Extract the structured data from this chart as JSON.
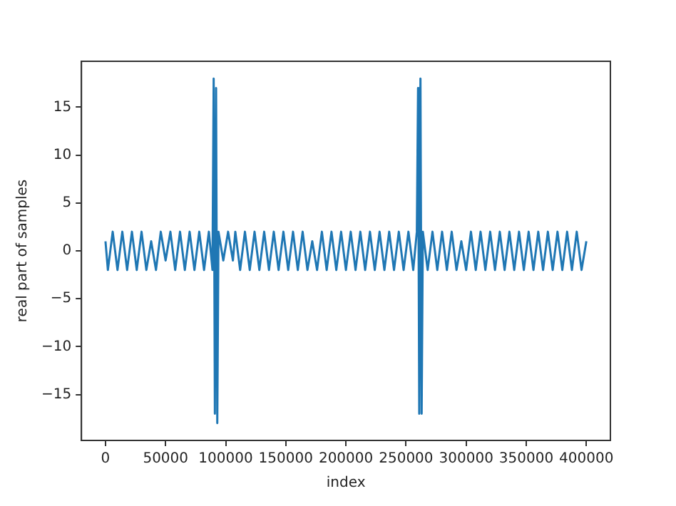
{
  "chart_data": {
    "type": "line",
    "xlabel": "index",
    "ylabel": "real part of samples",
    "xlim": [
      -20000,
      420000
    ],
    "xticks": [
      0,
      50000,
      100000,
      150000,
      200000,
      250000,
      300000,
      350000,
      400000
    ],
    "ylim": [
      -19.8,
      19.8
    ],
    "yticks": [
      -15,
      -10,
      -5,
      0,
      5,
      10,
      15
    ],
    "grid": false,
    "legend": false,
    "marker": "none",
    "line_style": "solid",
    "series": [
      {
        "color": "#1f77b4",
        "x": [
          0,
          2000,
          6000,
          10000,
          14000,
          18000,
          22000,
          26000,
          30000,
          34000,
          38000,
          42000,
          46000,
          50000,
          54000,
          58000,
          62000,
          66000,
          70000,
          74000,
          78000,
          82000,
          86000,
          89000,
          90000,
          91000,
          92000,
          93000,
          94000,
          98000,
          102000,
          106000,
          108000,
          112000,
          116000,
          120000,
          124000,
          128000,
          132000,
          136000,
          140000,
          144000,
          148000,
          152000,
          156000,
          160000,
          164000,
          168000,
          172000,
          176000,
          180000,
          184000,
          188000,
          192000,
          196000,
          200000,
          204000,
          208000,
          212000,
          216000,
          220000,
          224000,
          228000,
          232000,
          236000,
          240000,
          244000,
          248000,
          252000,
          256000,
          259000,
          260000,
          261000,
          262000,
          263000,
          264000,
          268000,
          272000,
          276000,
          280000,
          284000,
          288000,
          292000,
          296000,
          300000,
          304000,
          308000,
          312000,
          316000,
          320000,
          324000,
          328000,
          332000,
          336000,
          340000,
          344000,
          348000,
          352000,
          356000,
          360000,
          364000,
          368000,
          372000,
          376000,
          380000,
          384000,
          388000,
          392000,
          396000,
          400000
        ],
        "values": [
          1,
          -2,
          2,
          -2,
          2,
          -2,
          2,
          -2,
          2,
          -2,
          1,
          -2,
          2,
          -1,
          2,
          -2,
          2,
          -2,
          2,
          -2,
          2,
          -2,
          2,
          -2,
          18,
          -17,
          17,
          -18,
          2,
          -1,
          2,
          -1,
          2,
          -2,
          2,
          -2,
          2,
          -2,
          2,
          -2,
          2,
          -2,
          2,
          -2,
          2,
          -2,
          2,
          -2,
          1,
          -2,
          2,
          -2,
          2,
          -2,
          2,
          -2,
          2,
          -2,
          2,
          -2,
          2,
          -2,
          2,
          -2,
          2,
          -2,
          2,
          -2,
          2,
          -2,
          2,
          17,
          -17,
          18,
          -17,
          2,
          -2,
          2,
          -2,
          2,
          -2,
          2,
          -2,
          1,
          -2,
          2,
          -2,
          2,
          -2,
          2,
          -2,
          2,
          -2,
          2,
          -2,
          2,
          -2,
          2,
          -2,
          2,
          -2,
          2,
          -2,
          2,
          -2,
          2,
          -2,
          2,
          -2,
          1
        ]
      }
    ]
  }
}
